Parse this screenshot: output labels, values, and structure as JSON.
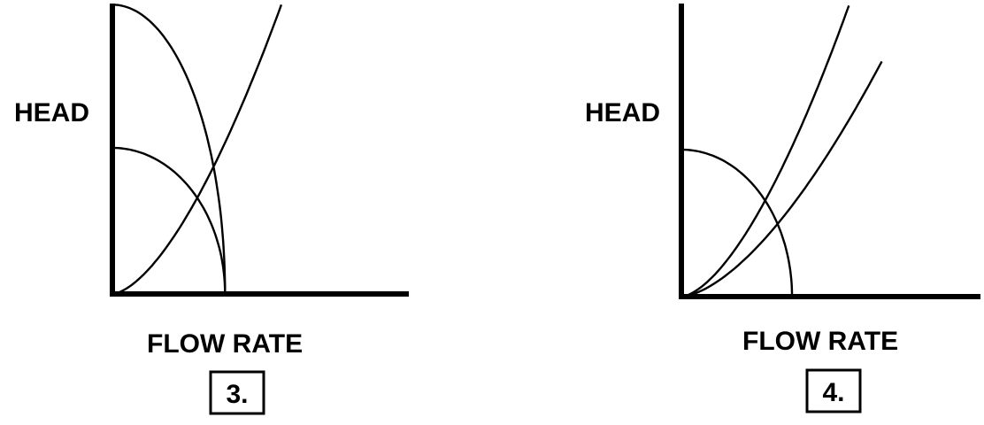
{
  "panels": [
    {
      "number": "3.",
      "y_label": "HEAD",
      "x_label": "FLOW RATE",
      "curves": [
        {
          "kind": "pump-curve",
          "shutoff_head": 0.99,
          "max_flow": 0.38
        },
        {
          "kind": "pump-curve",
          "shutoff_head": 0.5,
          "max_flow": 0.38
        },
        {
          "kind": "system-curve",
          "end_flow": 0.57,
          "end_head": 0.99
        }
      ]
    },
    {
      "number": "4.",
      "y_label": "HEAD",
      "x_label": "FLOW RATE",
      "curves": [
        {
          "kind": "pump-curve",
          "shutoff_head": 0.5,
          "max_flow": 0.37
        },
        {
          "kind": "system-curve",
          "end_flow": 0.56,
          "end_head": 0.99
        },
        {
          "kind": "system-curve",
          "end_flow": 0.67,
          "end_head": 0.8
        }
      ]
    }
  ],
  "colors": {
    "ink": "#000000",
    "background": "#ffffff"
  }
}
